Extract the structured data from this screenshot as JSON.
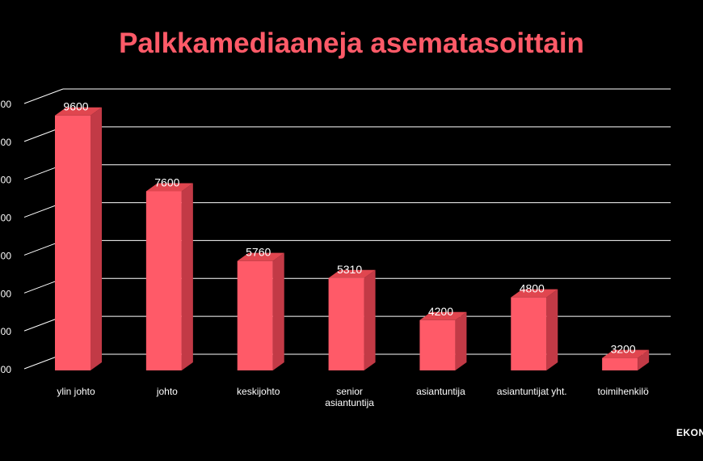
{
  "colors": {
    "background": "#000000",
    "bar_front": "#ff5a68",
    "bar_side": "#c23a46",
    "bar_top": "#e0464f",
    "title": "#ff5a68",
    "text": "#ffffff",
    "grid": "#ffffff"
  },
  "brand": {
    "text": "EKON"
  },
  "chart_data": {
    "type": "bar",
    "title": "Palkkamediaaneja asematasoittain",
    "xlabel": "",
    "ylabel": "",
    "categories": [
      "ylin johto",
      "johto",
      "keskijohto",
      "senior asiantuntija",
      "asiantuntija",
      "asiantuntijat yht.",
      "toimihenkilö"
    ],
    "values": [
      9600,
      7600,
      5760,
      5310,
      4200,
      4800,
      3200
    ],
    "data_labels": [
      "9600",
      "7600",
      "5760",
      "5310",
      "4200",
      "4800",
      "3200"
    ],
    "y_tick_labels": [
      "00",
      "00",
      "00",
      "00",
      "00",
      "00",
      "00",
      "00"
    ],
    "ylim": [
      3000,
      10000
    ],
    "grid": true,
    "legend": "none",
    "style": "3d-column"
  }
}
